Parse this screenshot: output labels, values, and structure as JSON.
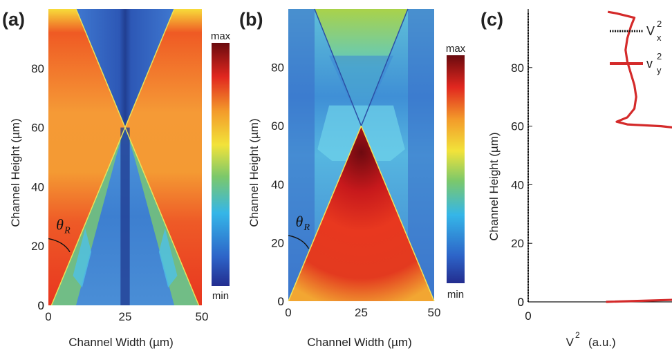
{
  "chart_data": [
    {
      "type": "heatmap",
      "panel": "(a)",
      "xlabel": "Channel Width (µm)",
      "ylabel": "Channel Height (µm)",
      "xlim": [
        0,
        50
      ],
      "ylim": [
        0,
        100
      ],
      "xticks": [
        0,
        25,
        50
      ],
      "yticks": [
        0,
        20,
        40,
        60,
        80
      ],
      "colorbar": {
        "max": "max",
        "min": "min"
      },
      "annotation": "θR",
      "description_values": {
        "crossing_point": [
          25,
          60
        ]
      }
    },
    {
      "type": "heatmap",
      "panel": "(b)",
      "xlabel": "Channel Width (µm)",
      "ylabel": "Channel Height (µm)",
      "xlim": [
        0,
        50
      ],
      "ylim": [
        0,
        100
      ],
      "xticks": [
        0,
        25,
        50
      ],
      "yticks": [
        0,
        20,
        40,
        60,
        80
      ],
      "colorbar": {
        "max": "max",
        "min": "min"
      },
      "annotation": "θR",
      "description_values": {
        "apex": [
          25,
          60
        ]
      }
    },
    {
      "type": "line",
      "panel": "(c)",
      "xlabel": "V",
      "xlabel_sup": "2",
      "xlabel_unit": "(a.u.)",
      "ylabel": "Channel Height (µm)",
      "ylim": [
        0,
        100
      ],
      "xticks": [
        "0"
      ],
      "yticks": [
        0,
        20,
        40,
        60,
        80
      ],
      "legend": [
        {
          "base": "V",
          "sup": "2",
          "sub": "x",
          "style": "dotted",
          "color": "#111111"
        },
        {
          "base": "v",
          "sup": "2",
          "sub": "y",
          "style": "solid",
          "color": "#d42a2a"
        }
      ],
      "series": [
        {
          "color": "#d42a2a",
          "points": [
            [
              0.44,
              0
            ],
            [
              0.97,
              1
            ],
            [
              0.97,
              5
            ],
            [
              0.95,
              10
            ],
            [
              0.94,
              15
            ],
            [
              0.93,
              19
            ],
            [
              0.91,
              22
            ],
            [
              0.89,
              25
            ],
            [
              0.88,
              28
            ],
            [
              0.9,
              31
            ],
            [
              0.92,
              35
            ],
            [
              0.95,
              40
            ],
            [
              0.97,
              45
            ],
            [
              0.98,
              50
            ],
            [
              0.97,
              54
            ],
            [
              0.95,
              57
            ],
            [
              0.9,
              59
            ],
            [
              0.75,
              60
            ],
            [
              0.56,
              60.6
            ],
            [
              0.5,
              61.5
            ],
            [
              0.56,
              63
            ],
            [
              0.6,
              66
            ],
            [
              0.61,
              70
            ],
            [
              0.6,
              74
            ],
            [
              0.58,
              78
            ],
            [
              0.56,
              82
            ],
            [
              0.55,
              86
            ],
            [
              0.56,
              90
            ],
            [
              0.58,
              94
            ],
            [
              0.6,
              97
            ],
            [
              0.5,
              98.5
            ],
            [
              0.45,
              99
            ]
          ]
        },
        {
          "color": "#111111",
          "points": [
            [
              0,
              0
            ],
            [
              0,
              99
            ]
          ]
        }
      ]
    }
  ]
}
